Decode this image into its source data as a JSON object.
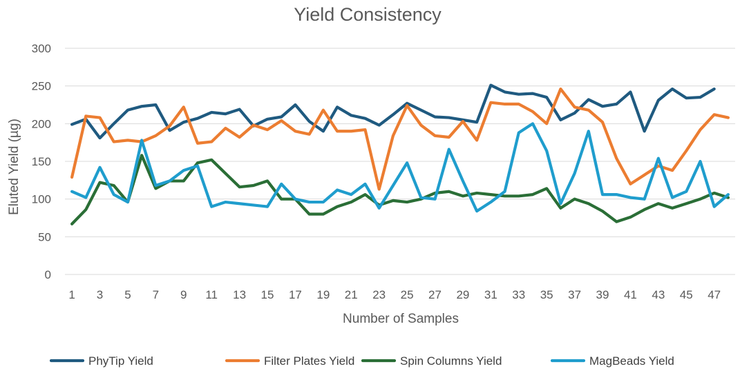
{
  "chart_data": {
    "type": "line",
    "title": "Yield Consistency",
    "xlabel": "Number of Samples",
    "ylabel": "Eluted Yield (µg)",
    "ylim": [
      0,
      300
    ],
    "yticks": [
      0,
      50,
      100,
      150,
      200,
      250,
      300
    ],
    "x": [
      1,
      2,
      3,
      4,
      5,
      6,
      7,
      8,
      9,
      10,
      11,
      12,
      13,
      14,
      15,
      16,
      17,
      18,
      19,
      20,
      21,
      22,
      23,
      24,
      25,
      26,
      27,
      28,
      29,
      30,
      31,
      32,
      33,
      34,
      35,
      36,
      37,
      38,
      39,
      40,
      41,
      42,
      43,
      44,
      45,
      46,
      47,
      48
    ],
    "xtick_labels": [
      "1",
      "3",
      "5",
      "7",
      "9",
      "11",
      "13",
      "15",
      "17",
      "19",
      "21",
      "23",
      "25",
      "27",
      "29",
      "31",
      "33",
      "35",
      "37",
      "39",
      "41",
      "43",
      "45",
      "47"
    ],
    "grid": true,
    "legend": "bottom",
    "series": [
      {
        "name": "PhyTip Yield",
        "color": "#1f5a80",
        "values": [
          199,
          206,
          181,
          200,
          218,
          223,
          225,
          191,
          202,
          207,
          215,
          213,
          219,
          197,
          206,
          209,
          225,
          203,
          190,
          222,
          211,
          207,
          198,
          212,
          227,
          218,
          209,
          208,
          205,
          202,
          251,
          242,
          239,
          240,
          235,
          205,
          214,
          232,
          223,
          226,
          242,
          190,
          231,
          246,
          234,
          235,
          246,
          null
        ]
      },
      {
        "name": "Filter Plates Yield",
        "color": "#ec7d31",
        "values": [
          129,
          210,
          208,
          176,
          178,
          176,
          184,
          197,
          222,
          174,
          176,
          194,
          182,
          198,
          192,
          204,
          190,
          186,
          218,
          190,
          190,
          192,
          113,
          184,
          224,
          198,
          184,
          182,
          203,
          178,
          228,
          226,
          226,
          216,
          200,
          246,
          222,
          218,
          202,
          154,
          120,
          132,
          144,
          138,
          164,
          192,
          212,
          208
        ]
      },
      {
        "name": "Spin Columns Yield",
        "color": "#2a6e36",
        "values": [
          67,
          86,
          122,
          118,
          96,
          158,
          114,
          124,
          124,
          148,
          152,
          134,
          116,
          118,
          124,
          100,
          100,
          80,
          80,
          90,
          96,
          106,
          92,
          98,
          96,
          100,
          108,
          110,
          104,
          108,
          106,
          104,
          104,
          106,
          114,
          88,
          100,
          94,
          84,
          70,
          76,
          86,
          94,
          88,
          94,
          100,
          108,
          102
        ]
      },
      {
        "name": "MagBeads Yield",
        "color": "#1f9dcd",
        "values": [
          110,
          102,
          142,
          106,
          96,
          178,
          118,
          124,
          138,
          144,
          90,
          96,
          94,
          92,
          90,
          120,
          100,
          96,
          96,
          112,
          106,
          120,
          88,
          118,
          148,
          102,
          100,
          166,
          124,
          84,
          96,
          110,
          188,
          200,
          164,
          94,
          134,
          190,
          106,
          106,
          102,
          100,
          154,
          102,
          110,
          150,
          90,
          106
        ]
      }
    ]
  }
}
